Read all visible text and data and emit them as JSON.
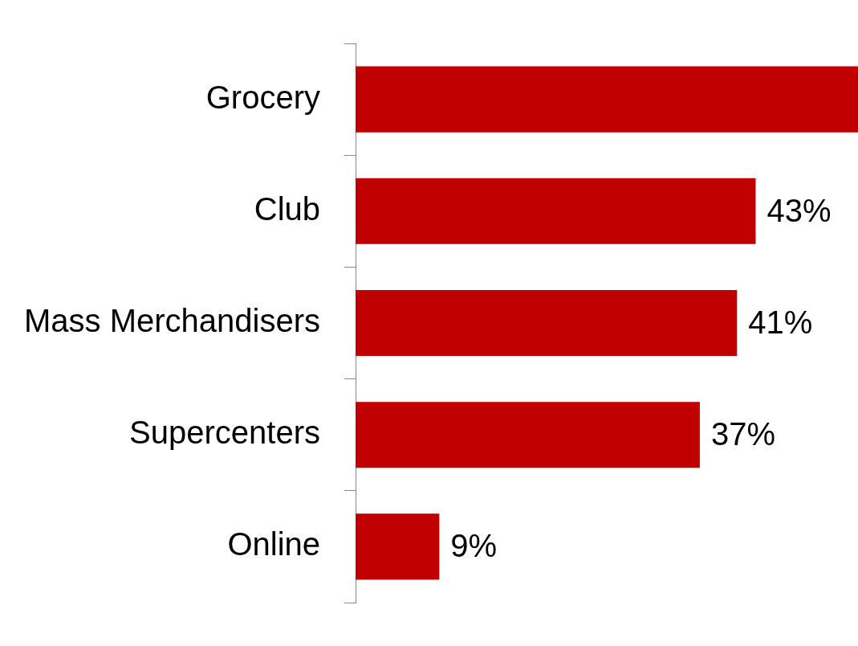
{
  "chart_data": {
    "type": "bar",
    "orientation": "horizontal",
    "categories": [
      "Grocery",
      "Club",
      "Mass Merchandisers",
      "Supercenters",
      "Online"
    ],
    "values": [
      54,
      43,
      41,
      37,
      9
    ],
    "value_labels": [
      null,
      "43%",
      "41%",
      "37%",
      "9%"
    ],
    "color": "#c00000",
    "xlim": [
      0,
      54
    ]
  }
}
